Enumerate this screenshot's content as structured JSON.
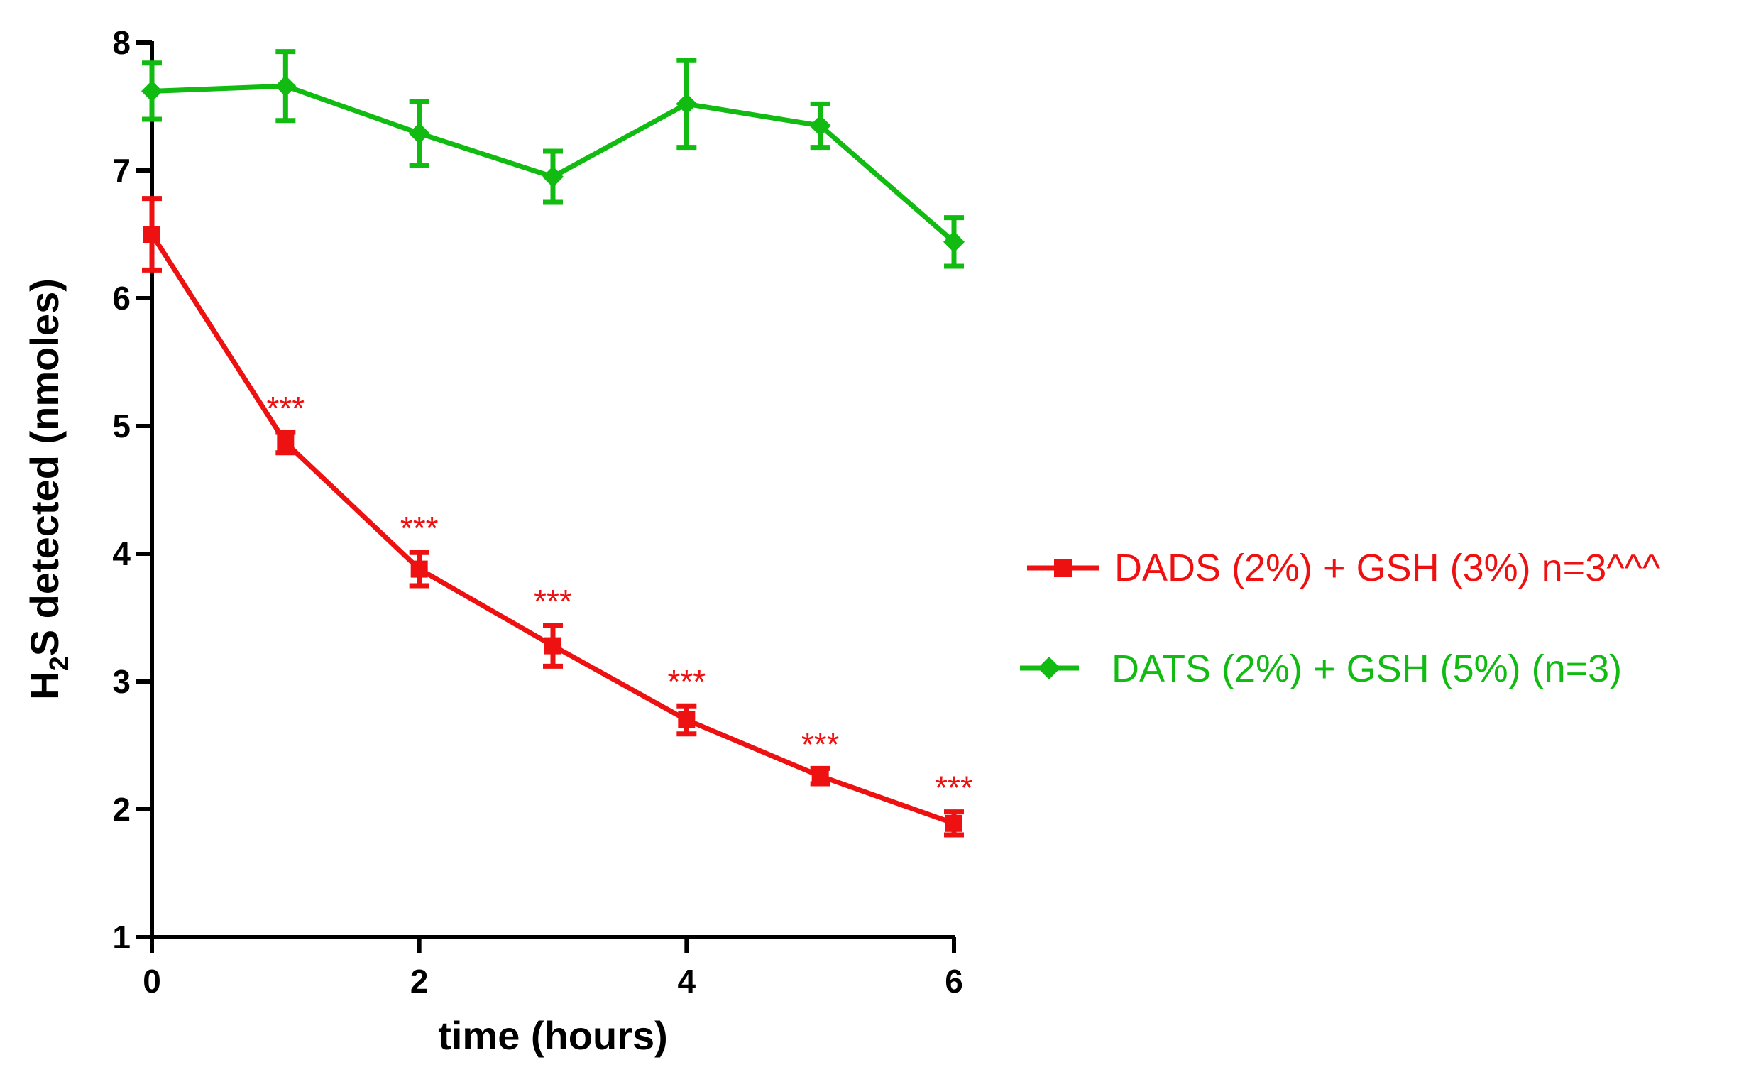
{
  "chart_data": {
    "type": "line",
    "title": "",
    "xlabel": "time (hours)",
    "ylabel": {
      "prefix": "H",
      "subscript": "2",
      "suffix": "S detected (nmoles)"
    },
    "xlim": [
      0,
      6
    ],
    "ylim": [
      1,
      8
    ],
    "x_ticks": [
      "0",
      "2",
      "4",
      "6"
    ],
    "y_ticks": [
      "1",
      "2",
      "3",
      "4",
      "5",
      "6",
      "7",
      "8"
    ],
    "grid": false,
    "legend_position": "right",
    "x": [
      0,
      1,
      2,
      3,
      4,
      5,
      6
    ],
    "series": [
      {
        "name": "DADS (2%) + GSH (3%) n=3^^^",
        "color": "#ee1111",
        "marker": "square",
        "values": [
          6.5,
          4.87,
          3.88,
          3.28,
          2.7,
          2.26,
          1.89
        ],
        "errors": [
          0.28,
          0.08,
          0.13,
          0.16,
          0.11,
          0.06,
          0.09
        ],
        "annotations": [
          "",
          "***",
          "***",
          "***",
          "***",
          "***",
          "***"
        ]
      },
      {
        "name": "DATS (2%) + GSH (5%) (n=3)",
        "color": "#11bb11",
        "marker": "diamond",
        "values": [
          7.62,
          7.66,
          7.29,
          6.95,
          7.52,
          7.35,
          6.44
        ],
        "errors": [
          0.22,
          0.27,
          0.25,
          0.2,
          0.34,
          0.17,
          0.19
        ],
        "annotations": [
          "",
          "",
          "",
          "",
          "",
          "",
          ""
        ]
      }
    ]
  }
}
